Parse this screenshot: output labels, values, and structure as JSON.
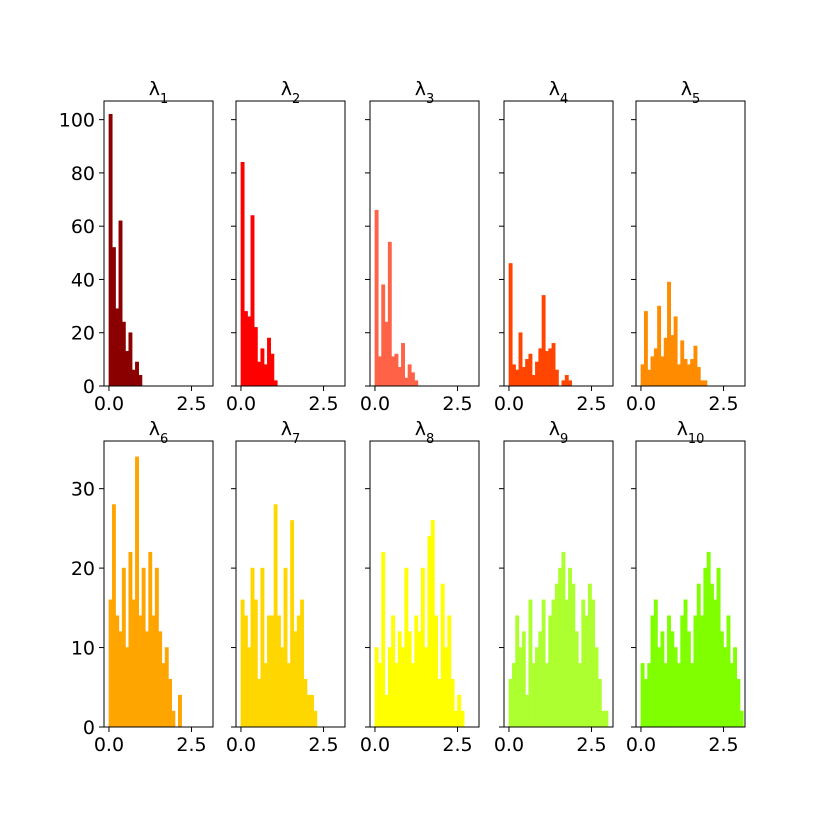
{
  "chart_data": {
    "type": "histogram-grid",
    "layout": {
      "rows": 2,
      "cols": 5
    },
    "bin_width": 0.1,
    "shared_x": {
      "lim": [
        -0.15,
        3.15
      ],
      "ticks": [
        0.0,
        2.5
      ],
      "tick_labels": [
        "0.0",
        "2.5"
      ]
    },
    "row_y": [
      {
        "lim": [
          0,
          107
        ],
        "ticks": [
          0,
          20,
          40,
          60,
          80,
          100
        ],
        "tick_labels": [
          "0",
          "20",
          "40",
          "60",
          "80",
          "100"
        ]
      },
      {
        "lim": [
          0,
          36
        ],
        "ticks": [
          0,
          10,
          20,
          30
        ],
        "tick_labels": [
          "0",
          "10",
          "20",
          "30"
        ]
      }
    ],
    "panels": [
      {
        "name": "λ",
        "sub": "1",
        "row": 0,
        "color": "#8b0000",
        "counts": [
          102,
          52,
          29,
          62,
          24,
          13,
          20,
          6,
          9,
          4
        ]
      },
      {
        "name": "λ",
        "sub": "2",
        "row": 0,
        "color": "#ff0000",
        "counts": [
          84,
          28,
          26,
          64,
          22,
          9,
          14,
          8,
          18,
          12,
          2
        ]
      },
      {
        "name": "λ",
        "sub": "3",
        "row": 0,
        "color": "#ff6347",
        "counts": [
          66,
          11,
          38,
          24,
          54,
          11,
          12,
          7,
          16,
          3,
          8,
          5,
          2
        ]
      },
      {
        "name": "λ",
        "sub": "4",
        "row": 0,
        "color": "#ff4500",
        "counts": [
          46,
          8,
          6,
          20,
          7,
          10,
          12,
          4,
          9,
          14,
          34,
          13,
          14,
          16,
          6,
          0,
          2,
          4,
          2
        ]
      },
      {
        "name": "λ",
        "sub": "5",
        "row": 0,
        "color": "#ff8c00",
        "counts": [
          8,
          28,
          6,
          11,
          14,
          30,
          11,
          18,
          39,
          19,
          26,
          8,
          17,
          10,
          8,
          10,
          15,
          7,
          2,
          2
        ]
      },
      {
        "name": "λ",
        "sub": "6",
        "row": 1,
        "color": "#ffa500",
        "counts": [
          16,
          28,
          14,
          12,
          20,
          10,
          22,
          16,
          34,
          14,
          20,
          12,
          22,
          14,
          20,
          12,
          8,
          10,
          6,
          2,
          0,
          4
        ]
      },
      {
        "name": "λ",
        "sub": "7",
        "row": 1,
        "color": "#ffd700",
        "counts": [
          16,
          14,
          10,
          20,
          16,
          6,
          20,
          8,
          14,
          14,
          28,
          14,
          10,
          20,
          8,
          26,
          12,
          14,
          16,
          6,
          4,
          4,
          2
        ]
      },
      {
        "name": "λ",
        "sub": "8",
        "row": 1,
        "color": "#ffff00",
        "counts": [
          10,
          8,
          22,
          4,
          10,
          14,
          8,
          12,
          10,
          20,
          12,
          8,
          14,
          12,
          20,
          10,
          24,
          26,
          14,
          6,
          18,
          10,
          14,
          6,
          2,
          4,
          2
        ]
      },
      {
        "name": "λ",
        "sub": "9",
        "row": 1,
        "color": "#adff2f",
        "counts": [
          6,
          8,
          14,
          10,
          12,
          4,
          16,
          8,
          10,
          12,
          16,
          8,
          14,
          16,
          18,
          20,
          22,
          16,
          20,
          18,
          12,
          8,
          16,
          14,
          18,
          16,
          10,
          6,
          2,
          2
        ]
      },
      {
        "name": "λ",
        "sub": "10",
        "row": 1,
        "color": "#7fff00",
        "counts": [
          8,
          6,
          8,
          14,
          16,
          10,
          12,
          8,
          14,
          12,
          10,
          8,
          14,
          16,
          12,
          8,
          14,
          18,
          14,
          20,
          22,
          18,
          16,
          20,
          12,
          10,
          14,
          8,
          10,
          6,
          2
        ]
      }
    ]
  }
}
